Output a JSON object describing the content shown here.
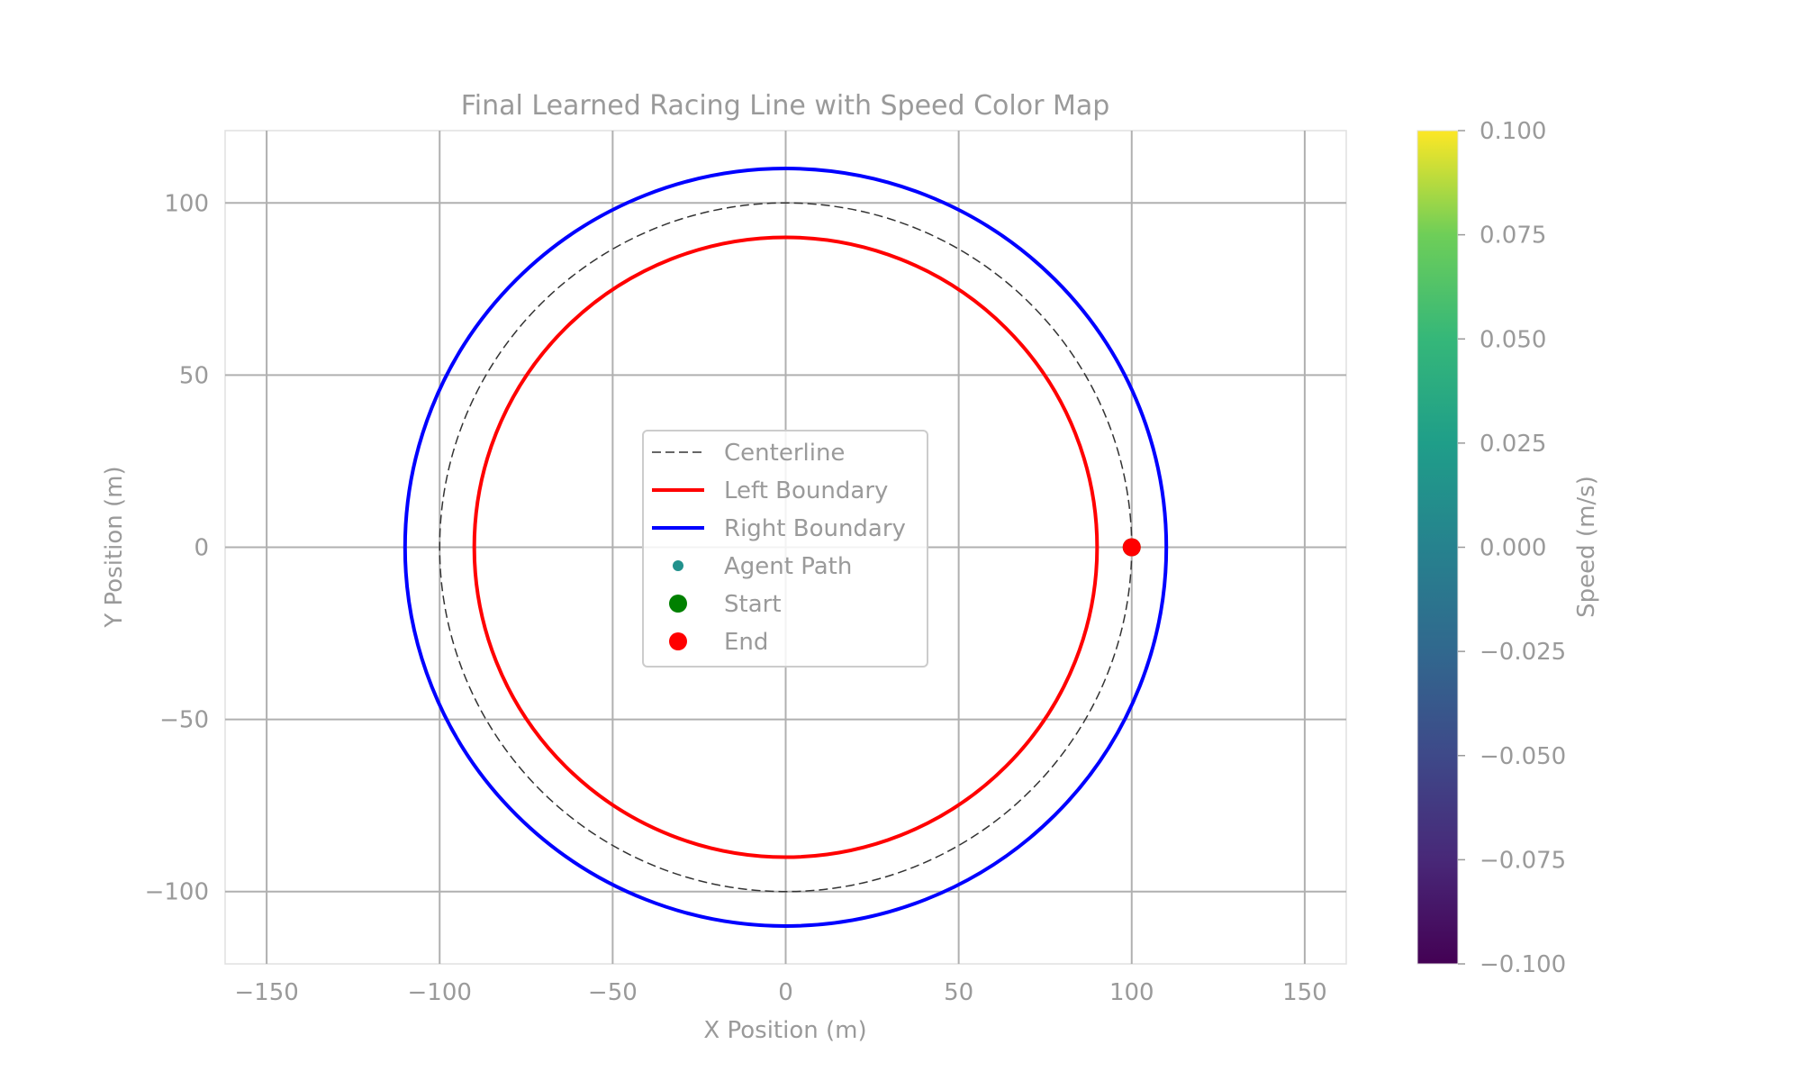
{
  "chart_data": {
    "type": "line",
    "title": "Final Learned Racing Line with Speed Color Map",
    "xlabel": "X Position (m)",
    "ylabel": "Y Position (m)",
    "xlim": [
      -162,
      162
    ],
    "ylim": [
      -121,
      121
    ],
    "xticks": [
      -150,
      -100,
      -50,
      0,
      50,
      100,
      150
    ],
    "yticks": [
      -100,
      -50,
      0,
      50,
      100
    ],
    "grid": true,
    "aspect": "equal",
    "series": [
      {
        "name": "Centerline",
        "shape": "circle",
        "center": [
          0,
          0
        ],
        "radius": 100,
        "color": "#333333",
        "style": "dashed"
      },
      {
        "name": "Left Boundary",
        "shape": "circle",
        "center": [
          0,
          0
        ],
        "radius": 90,
        "color": "#ff0000",
        "style": "solid"
      },
      {
        "name": "Right Boundary",
        "shape": "circle",
        "center": [
          0,
          0
        ],
        "radius": 110,
        "color": "#0000ff",
        "style": "solid"
      },
      {
        "name": "Agent Path",
        "type": "scatter",
        "points": [
          [
            100,
            0
          ]
        ],
        "color": "#21918c"
      },
      {
        "name": "Start",
        "type": "scatter",
        "points": [
          [
            100,
            0
          ]
        ],
        "color": "#008000"
      },
      {
        "name": "End",
        "type": "scatter",
        "points": [
          [
            100,
            0
          ]
        ],
        "color": "#ff0000"
      }
    ],
    "legend": {
      "placement": "center"
    },
    "colorbar": {
      "label": "Speed (m/s)",
      "colormap": "viridis",
      "range": [
        -0.1,
        0.1
      ],
      "ticks": [
        "−0.100",
        "−0.075",
        "−0.050",
        "−0.025",
        "0.000",
        "0.025",
        "0.050",
        "0.075",
        "0.100"
      ],
      "tick_values": [
        -0.1,
        -0.075,
        -0.05,
        -0.025,
        0,
        0.025,
        0.05,
        0.075,
        0.1
      ]
    }
  }
}
